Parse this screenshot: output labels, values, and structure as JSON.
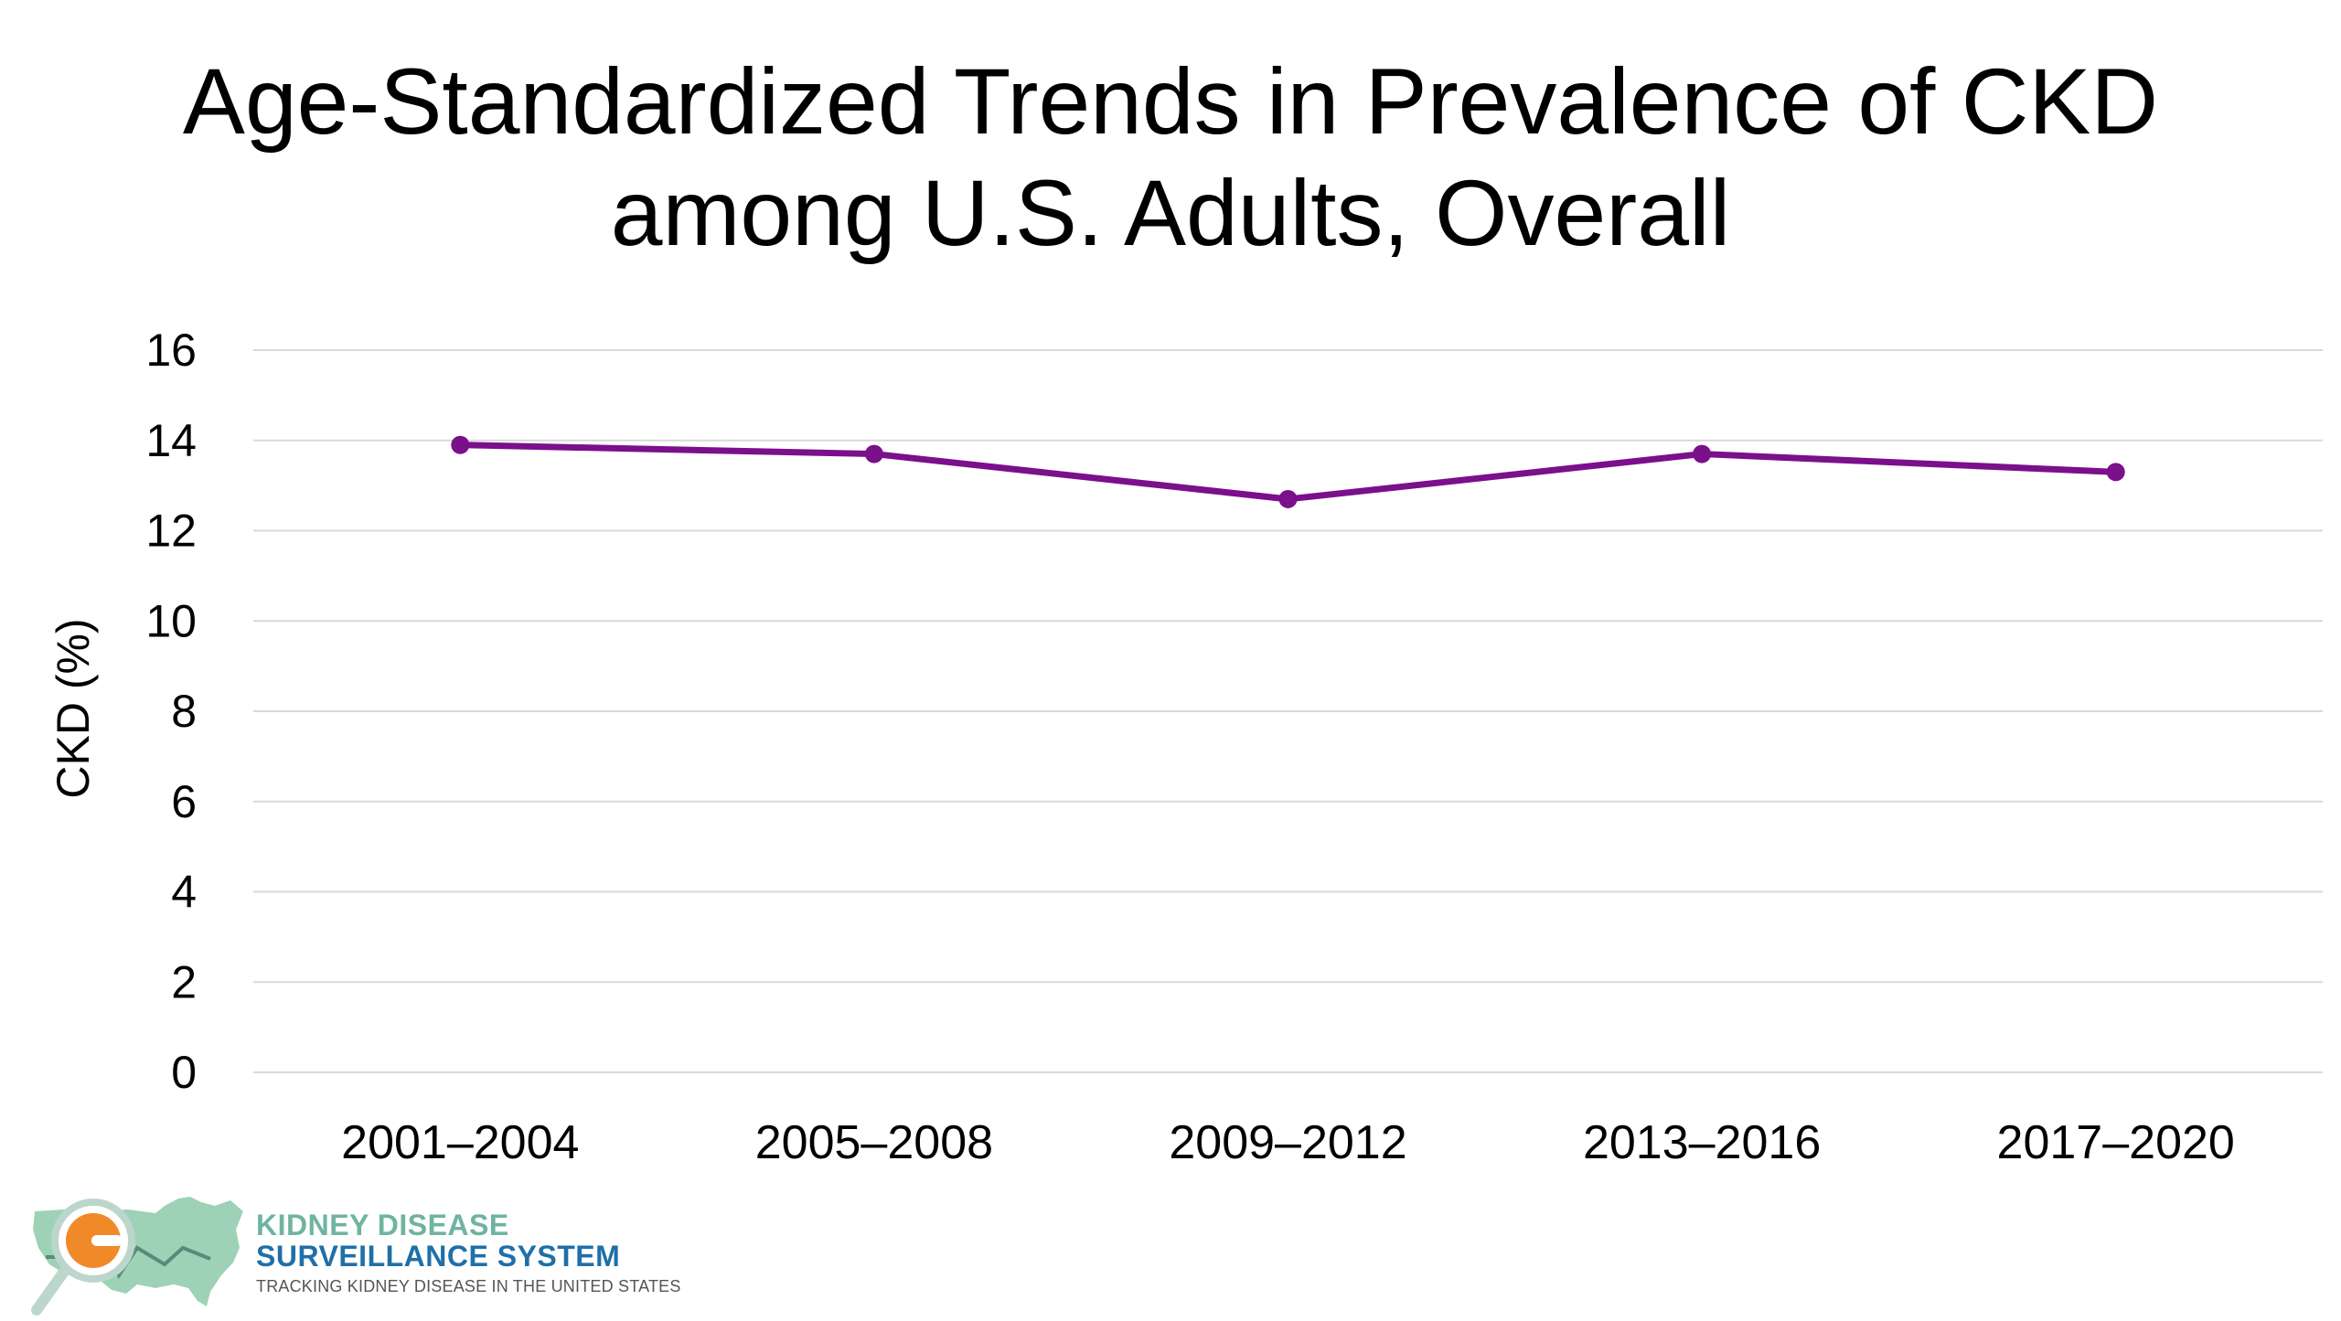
{
  "chart_data": {
    "type": "line",
    "title_lines": [
      "Age-Standardized Trends in Prevalence of CKD",
      "among U.S. Adults, Overall"
    ],
    "ylabel": "CKD (%)",
    "xlabel": "",
    "categories": [
      "2001–2004",
      "2005–2008",
      "2009–2012",
      "2013–2016",
      "2017–2020"
    ],
    "series": [
      {
        "values": [
          13.9,
          13.7,
          12.7,
          13.7,
          13.3
        ],
        "color": "#7b0f8c"
      }
    ],
    "ylim": [
      0,
      16
    ],
    "yticks": [
      "0",
      "2",
      "4",
      "6",
      "8",
      "10",
      "12",
      "14",
      "16"
    ],
    "grid": true,
    "legend": "none"
  },
  "logo": {
    "line1": "KIDNEY DISEASE",
    "line2": "SURVEILLANCE SYSTEM",
    "tagline": "TRACKING KIDNEY DISEASE IN THE UNITED STATES",
    "icon": "us-map-magnifier-icon"
  }
}
